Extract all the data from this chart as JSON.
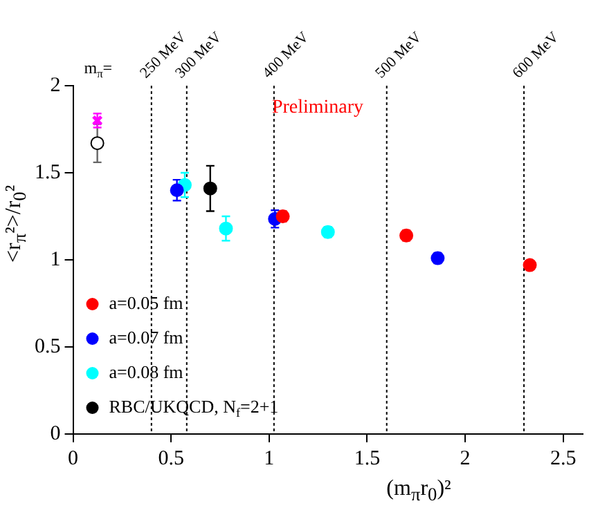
{
  "chart_data": {
    "type": "scatter",
    "xlabel": "(m$_{π}$r$_{0}$)²",
    "ylabel": "<r$_{π}$²>/r$_{0}$²",
    "xlim": [
      0,
      2.6
    ],
    "ylim": [
      0,
      2
    ],
    "xticks": [
      0,
      0.5,
      1,
      1.5,
      2,
      2.5
    ],
    "yticks": [
      0,
      0.5,
      1,
      1.5,
      2
    ],
    "grid": false,
    "legend": "bottom left",
    "marker": "circle",
    "annotations": [
      "m$_{π}$=",
      "Preliminary"
    ],
    "ref_lines": [
      {
        "axis": "x",
        "value": 0.4,
        "label": "250 MeV",
        "line_style": "dotted"
      },
      {
        "axis": "x",
        "value": 0.58,
        "label": "300 MeV",
        "line_style": "dotted"
      },
      {
        "axis": "x",
        "value": 1.025,
        "label": "400 MeV",
        "line_style": "dotted"
      },
      {
        "axis": "x",
        "value": 1.6,
        "label": "500 MeV",
        "line_style": "dotted"
      },
      {
        "axis": "x",
        "value": 2.3,
        "label": "600 MeV",
        "line_style": "dotted"
      }
    ],
    "series": [
      {
        "name": "a=0.05 fm",
        "color": "#ff0000",
        "x": [
          1.07,
          1.7,
          2.33
        ],
        "values": [
          1.25,
          1.14,
          0.97
        ],
        "errors": [
          0.03,
          0.03,
          null
        ]
      },
      {
        "name": "a=0.07 fm",
        "color": "#0000ff",
        "x": [
          0.53,
          1.03,
          1.86
        ],
        "values": [
          1.4,
          1.235,
          1.01
        ],
        "errors": [
          0.06,
          0.05,
          0.03
        ]
      },
      {
        "name": "a=0.08 fm",
        "color": "#00ffff",
        "x": [
          0.57,
          0.78,
          1.3
        ],
        "values": [
          1.43,
          1.18,
          1.16
        ],
        "errors": [
          0.07,
          0.07,
          0.03
        ]
      },
      {
        "name": "RBC/UKQCD, N$_{f}$=2+1",
        "color": "#000000",
        "x": [
          0.7
        ],
        "values": [
          1.41
        ],
        "errors": [
          0.13
        ]
      },
      {
        "color": "#000000",
        "x": [
          0.124
        ],
        "values": [
          1.67
        ],
        "errors": [
          0.11
        ]
      },
      {
        "color": "#ff00ff",
        "marker": "cross",
        "x": [
          0.124
        ],
        "values": [
          1.8
        ],
        "errors": [
          0.04
        ]
      }
    ]
  }
}
